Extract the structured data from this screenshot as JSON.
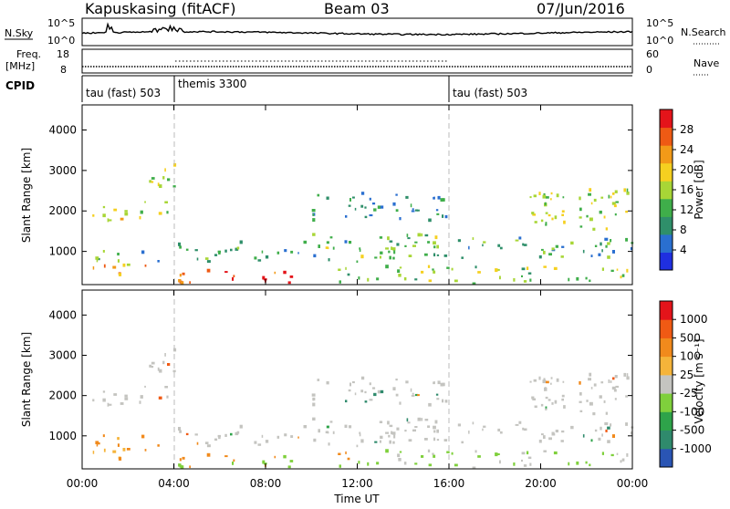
{
  "header": {
    "station": "Kapuskasing (fitACF)",
    "beam": "Beam 03",
    "date": "07/Jun/2016"
  },
  "status_panels": {
    "nsky_label": "N.Sky",
    "nsearch_label": "N.Search",
    "noise_ticks_left": [
      "10^5",
      "10^0"
    ],
    "noise_ticks_right": [
      "10^5",
      "10^0"
    ],
    "freq_label": "Freq.",
    "freq_unit": "[MHz]",
    "freq_ticks": [
      "18",
      "8"
    ],
    "nave_label": "Nave",
    "nave_ticks": [
      "60",
      "0"
    ],
    "cpid_label": "CPID",
    "cpid_segments": [
      {
        "label": "tau (fast) 503",
        "start_h": 0,
        "end_h": 4
      },
      {
        "label": "themis 3300",
        "start_h": 4,
        "end_h": 16
      },
      {
        "label": "tau (fast) 503",
        "start_h": 16,
        "end_h": 24
      }
    ]
  },
  "colors": {
    "power_scale": [
      "#1f2fe0",
      "#2a6fd0",
      "#2f8f6a",
      "#3fae4a",
      "#a8d636",
      "#f5d020",
      "#f29a18",
      "#ee5a14",
      "#e4141a"
    ],
    "velocity_scale": [
      "#2a55b4",
      "#2f8a6c",
      "#2ea34a",
      "#7fd03c",
      "#c4c4c0",
      "#f5b43a",
      "#f18a1c",
      "#f05a14",
      "#e4141a"
    ]
  },
  "chart_data": [
    {
      "type": "heatmap",
      "name": "power",
      "ylabel": "Slant Range [km]",
      "xlabel": "Time UT",
      "x_ticks": [
        "00:00",
        "04:00",
        "08:00",
        "12:00",
        "16:00",
        "20:00",
        "00:00"
      ],
      "y_ticks": [
        1000,
        2000,
        3000,
        4000
      ],
      "xlim_hours": [
        0,
        24
      ],
      "ylim_km": [
        180,
        4620
      ],
      "colorbar": {
        "label": "Power [dB]",
        "ticks": [
          "4",
          "8",
          "12",
          "16",
          "20",
          "24",
          "28"
        ]
      },
      "scatter_bands": [
        {
          "t0": 0.0,
          "t1": 2.7,
          "r0": 1650,
          "r1": 2150,
          "level": 0.6
        },
        {
          "t0": 2.7,
          "t1": 4.0,
          "r0": 1900,
          "r1": 3100,
          "level": 0.5
        },
        {
          "t0": 0.3,
          "t1": 3.3,
          "r0": 700,
          "r1": 1100,
          "level": 0.35
        },
        {
          "t0": 0.0,
          "t1": 4.0,
          "r0": 380,
          "r1": 650,
          "level": 0.7
        },
        {
          "t0": 4.0,
          "t1": 9.5,
          "r0": 180,
          "r1": 500,
          "level": 0.9
        },
        {
          "t0": 4.0,
          "t1": 12.0,
          "r0": 700,
          "r1": 1200,
          "level": 0.3
        },
        {
          "t0": 10.0,
          "t1": 16.0,
          "r0": 1700,
          "r1": 2500,
          "level": 0.25
        },
        {
          "t0": 10.0,
          "t1": 16.0,
          "r0": 800,
          "r1": 1400,
          "level": 0.4
        },
        {
          "t0": 11.0,
          "t1": 24.0,
          "r0": 180,
          "r1": 600,
          "level": 0.45
        },
        {
          "t0": 19.5,
          "t1": 24.0,
          "r0": 1500,
          "r1": 2500,
          "level": 0.5
        },
        {
          "t0": 16.0,
          "t1": 24.0,
          "r0": 800,
          "r1": 1300,
          "level": 0.3
        }
      ]
    },
    {
      "type": "heatmap",
      "name": "velocity",
      "ylabel": "Slant Range [km]",
      "xlabel": "Time UT",
      "x_ticks": [
        "00:00",
        "04:00",
        "08:00",
        "12:00",
        "16:00",
        "20:00",
        "00:00"
      ],
      "y_ticks": [
        1000,
        2000,
        3000,
        4000
      ],
      "xlim_hours": [
        0,
        24
      ],
      "ylim_km": [
        180,
        4620
      ],
      "colorbar": {
        "label": "Velocity [m s⁻¹]",
        "ticks": [
          "1000",
          "500",
          "100",
          "25",
          "-25",
          "-100",
          "-500",
          "-1000"
        ]
      }
    }
  ]
}
